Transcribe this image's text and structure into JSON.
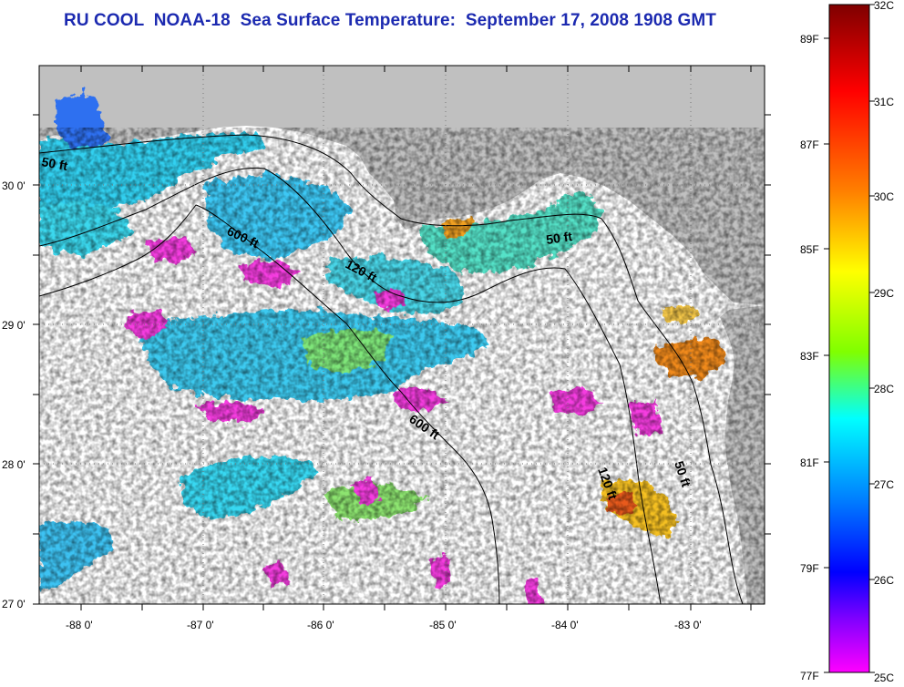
{
  "title": "RU COOL  NOAA-18  Sea Surface Temperature:  September 17, 2008 1908 GMT",
  "map": {
    "lon_ticks": [
      "-88 0'",
      "-87 0'",
      "-86 0'",
      "-85 0'",
      "-84 0'",
      "-83 0'"
    ],
    "lat_ticks": [
      "30 0'",
      "29 0'",
      "28 0'",
      "27 0'"
    ],
    "contour_labels": [
      "50 ft",
      "600 ft",
      "120 ft",
      "50 ft",
      "600 ft",
      "120 ft",
      "50 ft"
    ],
    "land_color": "#c0c0c0",
    "ocean_nodata_color": "#ffffff",
    "grid": "dotted"
  },
  "colorbar": {
    "celsius_labels": [
      "32C",
      "31C",
      "30C",
      "29C",
      "28C",
      "27C",
      "26C",
      "25C"
    ],
    "fahrenheit_labels": [
      "89F",
      "87F",
      "85F",
      "83F",
      "81F",
      "79F",
      "77F"
    ],
    "gradient_colors": [
      "#7f0000",
      "#ff0000",
      "#ff8000",
      "#ffff00",
      "#80ff00",
      "#00ffff",
      "#0080ff",
      "#0000ff",
      "#8000ff",
      "#ff00ff"
    ]
  }
}
